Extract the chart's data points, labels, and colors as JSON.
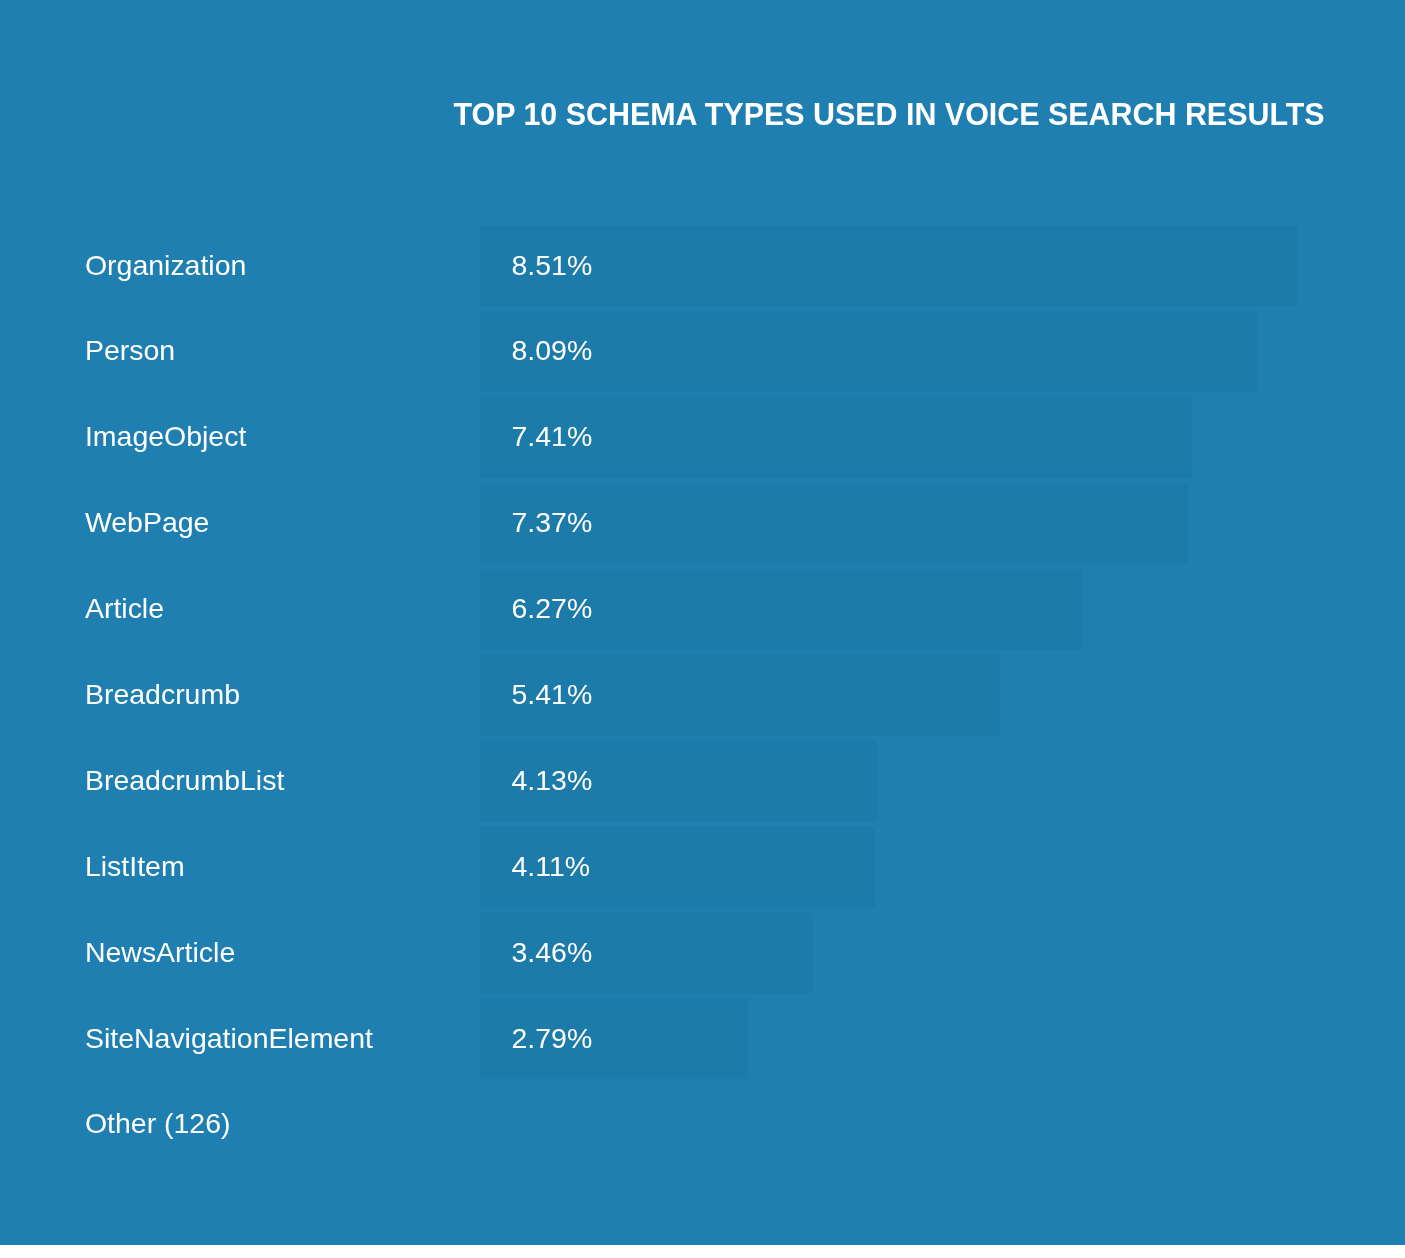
{
  "chart_data": {
    "type": "bar",
    "orientation": "horizontal",
    "title": "TOP 10 SCHEMA TYPES USED IN VOICE SEARCH RESULTS",
    "categories": [
      "Organization",
      "Person",
      "ImageObject",
      "WebPage",
      "Article",
      "Breadcrumb",
      "BreadcrumbList",
      "ListItem",
      "NewsArticle",
      "SiteNavigationElement",
      "Other (126)"
    ],
    "values": [
      8.51,
      8.09,
      7.41,
      7.37,
      6.27,
      5.41,
      4.13,
      4.11,
      3.46,
      2.79,
      null
    ],
    "value_labels": [
      "8.51%",
      "8.09%",
      "7.41%",
      "7.37%",
      "6.27%",
      "5.41%",
      "4.13%",
      "4.11%",
      "3.46%",
      "2.79%",
      null
    ],
    "color": "#1d7aa9"
  }
}
